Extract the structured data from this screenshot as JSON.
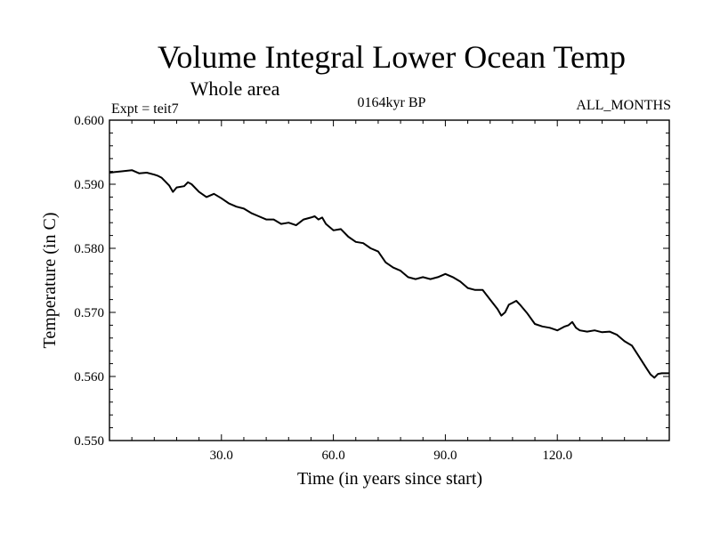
{
  "chart_data": {
    "type": "line",
    "title": "Volume Integral Lower Ocean Temp",
    "subtitle": "Whole area",
    "expt_label": "Expt = teit7",
    "period_label": "0164kyr BP",
    "months_label": "ALL_MONTHS",
    "xlabel": "Time (in years since start)",
    "ylabel": "Temperature (in C)",
    "xlim": [
      0,
      150
    ],
    "ylim": [
      0.55,
      0.6
    ],
    "x_ticks": [
      30,
      60,
      90,
      120
    ],
    "x_tick_labels": [
      "30.0",
      "60.0",
      "90.0",
      "120.0"
    ],
    "y_ticks": [
      0.55,
      0.56,
      0.57,
      0.58,
      0.59,
      0.6
    ],
    "y_tick_labels": [
      "0.550",
      "0.560",
      "0.570",
      "0.580",
      "0.590",
      "0.600"
    ],
    "grid": false,
    "series": [
      {
        "name": "teit7",
        "color": "#000000",
        "x": [
          0,
          3,
          6,
          8,
          10,
          12,
          13,
          14,
          16,
          17,
          18,
          20,
          21,
          22,
          24,
          26,
          28,
          30,
          32,
          34,
          36,
          38,
          40,
          42,
          44,
          46,
          48,
          50,
          52,
          54,
          55,
          56,
          57,
          58,
          60,
          62,
          64,
          66,
          68,
          70,
          72,
          74,
          76,
          78,
          80,
          82,
          84,
          86,
          88,
          90,
          92,
          94,
          96,
          98,
          100,
          102,
          104,
          105,
          106,
          107,
          108,
          109,
          110,
          112,
          114,
          116,
          118,
          120,
          122,
          123,
          124,
          125,
          126,
          128,
          130,
          132,
          134,
          136,
          138,
          140,
          142,
          144,
          145,
          146,
          147,
          148,
          150
        ],
        "y": [
          0.5918,
          0.592,
          0.5922,
          0.5917,
          0.5918,
          0.5915,
          0.5913,
          0.591,
          0.5898,
          0.5888,
          0.5895,
          0.5897,
          0.5903,
          0.59,
          0.5888,
          0.588,
          0.5885,
          0.5878,
          0.587,
          0.5865,
          0.5862,
          0.5855,
          0.585,
          0.5845,
          0.5845,
          0.5838,
          0.584,
          0.5836,
          0.5845,
          0.5848,
          0.585,
          0.5845,
          0.5848,
          0.5838,
          0.5828,
          0.583,
          0.5818,
          0.581,
          0.5808,
          0.58,
          0.5795,
          0.5778,
          0.577,
          0.5765,
          0.5755,
          0.5752,
          0.5755,
          0.5752,
          0.5755,
          0.576,
          0.5755,
          0.5748,
          0.5738,
          0.5735,
          0.5735,
          0.572,
          0.5705,
          0.5695,
          0.57,
          0.5712,
          0.5715,
          0.5718,
          0.5712,
          0.5698,
          0.5682,
          0.5678,
          0.5676,
          0.5672,
          0.5678,
          0.568,
          0.5685,
          0.5676,
          0.5672,
          0.567,
          0.5672,
          0.5669,
          0.567,
          0.5665,
          0.5655,
          0.5648,
          0.563,
          0.5612,
          0.5603,
          0.5598,
          0.5604,
          0.5605,
          0.5605
        ]
      }
    ]
  }
}
